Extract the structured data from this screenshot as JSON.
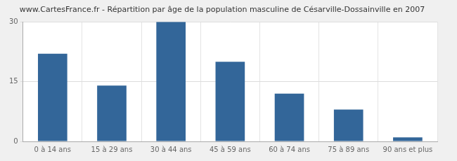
{
  "chart_data": {
    "type": "bar",
    "title": "www.CartesFrance.fr - Répartition par âge de la population masculine de Césarville-Dossainville en 2007",
    "categories": [
      "0 à 14 ans",
      "15 à 29 ans",
      "30 à 44 ans",
      "45 à 59 ans",
      "60 à 74 ans",
      "75 à 89 ans",
      "90 ans et plus"
    ],
    "values": [
      22,
      14,
      30,
      20,
      12,
      8,
      1
    ],
    "color": "#336699",
    "ylim": [
      0,
      30
    ],
    "yticks": [
      0,
      15,
      30
    ],
    "grid": true
  }
}
